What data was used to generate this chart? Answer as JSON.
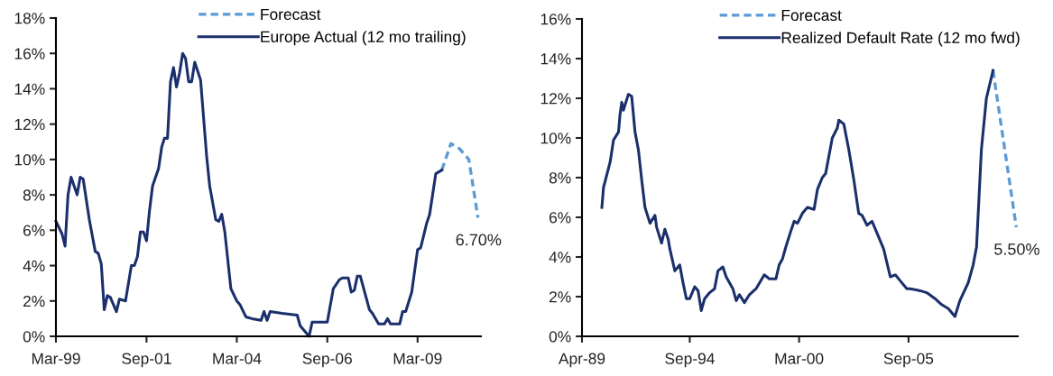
{
  "chart_data": [
    {
      "type": "line",
      "legend": "top right",
      "grid": false,
      "xlim": [
        "1999-03",
        "2010-12"
      ],
      "ylim": [
        0,
        18
      ],
      "xticks": [
        {
          "value": "1999-03",
          "label": "Mar-99"
        },
        {
          "value": "2001-09",
          "label": "Sep-01"
        },
        {
          "value": "2004-03",
          "label": "Mar-04"
        },
        {
          "value": "2006-09",
          "label": "Sep-06"
        },
        {
          "value": "2009-03",
          "label": "Mar-09"
        }
      ],
      "yticks": [
        {
          "value": 0,
          "label": "0%"
        },
        {
          "value": 2,
          "label": "2%"
        },
        {
          "value": 4,
          "label": "4%"
        },
        {
          "value": 6,
          "label": "6%"
        },
        {
          "value": 8,
          "label": "8%"
        },
        {
          "value": 10,
          "label": "10%"
        },
        {
          "value": 12,
          "label": "12%"
        },
        {
          "value": 14,
          "label": "14%"
        },
        {
          "value": 16,
          "label": "16%"
        },
        {
          "value": 18,
          "label": "18%"
        }
      ],
      "series": [
        {
          "name": "Forecast",
          "color": "#5b9bd5",
          "line_style": "dashed",
          "x": [
            "2009-11",
            "2010-02",
            "2010-05",
            "2010-08",
            "2010-11"
          ],
          "values": [
            9.4,
            10.9,
            10.6,
            10.0,
            6.7
          ]
        },
        {
          "name": "Europe Actual (12 mo trailing)",
          "color": "#1a2f6b",
          "line_style": "solid",
          "x": [
            "1999-03",
            "1999-05",
            "1999-06",
            "1999-07",
            "1999-08",
            "1999-10",
            "1999-11",
            "1999-12",
            "2000-02",
            "2000-04",
            "2000-05",
            "2000-06",
            "2000-07",
            "2000-08",
            "2000-09",
            "2000-11",
            "2000-12",
            "2001-02",
            "2001-04",
            "2001-05",
            "2001-06",
            "2001-07",
            "2001-08",
            "2001-09",
            "2001-10",
            "2001-11",
            "2002-01",
            "2002-02",
            "2002-03",
            "2002-04",
            "2002-05",
            "2002-06",
            "2002-07",
            "2002-08",
            "2002-09",
            "2002-10",
            "2002-11",
            "2002-12",
            "2003-01",
            "2003-03",
            "2003-05",
            "2003-06",
            "2003-08",
            "2003-09",
            "2003-10",
            "2003-11",
            "2004-01",
            "2004-03",
            "2004-04",
            "2004-06",
            "2004-08",
            "2004-11",
            "2004-12",
            "2005-01",
            "2005-02",
            "2005-06",
            "2005-11",
            "2005-12",
            "2006-03",
            "2006-04",
            "2006-09",
            "2006-11",
            "2007-01",
            "2007-02",
            "2007-04",
            "2007-05",
            "2007-06",
            "2007-07",
            "2007-08",
            "2007-11",
            "2007-12",
            "2008-02",
            "2008-04",
            "2008-05",
            "2008-06",
            "2008-09",
            "2008-10",
            "2008-11",
            "2009-01",
            "2009-03",
            "2009-04",
            "2009-06",
            "2009-07",
            "2009-09",
            "2009-11"
          ],
          "values": [
            6.5,
            5.8,
            5.1,
            8.0,
            9.0,
            8.0,
            9.0,
            8.9,
            6.6,
            4.8,
            4.7,
            4.1,
            1.5,
            2.3,
            2.2,
            1.4,
            2.1,
            2.0,
            4.0,
            4.0,
            4.5,
            5.9,
            5.9,
            5.4,
            7.1,
            8.5,
            9.5,
            10.7,
            11.2,
            11.2,
            14.4,
            15.2,
            14.1,
            14.9,
            16.0,
            15.7,
            14.4,
            14.4,
            15.5,
            14.5,
            10.2,
            8.5,
            6.6,
            6.5,
            6.9,
            5.9,
            2.7,
            2.0,
            1.8,
            1.1,
            1.0,
            0.9,
            1.4,
            0.9,
            1.4,
            1.3,
            1.2,
            0.6,
            0.0,
            0.8,
            0.8,
            2.7,
            3.2,
            3.3,
            3.3,
            2.5,
            2.6,
            3.4,
            3.4,
            1.5,
            1.3,
            0.7,
            0.7,
            1.0,
            0.7,
            0.7,
            1.4,
            1.4,
            2.5,
            4.9,
            5.0,
            6.4,
            6.9,
            9.2,
            9.4
          ]
        }
      ],
      "annotations": [
        {
          "text": "6.70%",
          "x": "2010-11",
          "y": 6.7
        }
      ]
    },
    {
      "type": "line",
      "legend": "top right",
      "grid": false,
      "xlim": [
        "1989-04",
        "2011-03"
      ],
      "ylim": [
        0,
        16
      ],
      "xticks": [
        {
          "value": "1989-04",
          "label": "Apr-89"
        },
        {
          "value": "1994-09",
          "label": "Sep-94"
        },
        {
          "value": "2000-03",
          "label": "Mar-00"
        },
        {
          "value": "2005-09",
          "label": "Sep-05"
        }
      ],
      "yticks": [
        {
          "value": 0,
          "label": "0%"
        },
        {
          "value": 2,
          "label": "2%"
        },
        {
          "value": 4,
          "label": "4%"
        },
        {
          "value": 6,
          "label": "6%"
        },
        {
          "value": 8,
          "label": "8%"
        },
        {
          "value": 10,
          "label": "10%"
        },
        {
          "value": 12,
          "label": "12%"
        },
        {
          "value": 14,
          "label": "14%"
        },
        {
          "value": 16,
          "label": "16%"
        }
      ],
      "series": [
        {
          "name": "Forecast",
          "color": "#5b9bd5",
          "line_style": "dashed",
          "x": [
            "2009-12",
            "2011-02"
          ],
          "values": [
            13.4,
            5.5
          ]
        },
        {
          "name": "Realized Default Rate (12 mo fwd)",
          "color": "#1a2f6b",
          "line_style": "solid",
          "x": [
            "1990-04",
            "1990-05",
            "1990-09",
            "1990-11",
            "1991-02",
            "1991-03",
            "1991-04",
            "1991-05",
            "1991-08",
            "1991-10",
            "1991-12",
            "1992-02",
            "1992-04",
            "1992-06",
            "1992-09",
            "1992-12",
            "1993-01",
            "1993-04",
            "1993-06",
            "1993-08",
            "1993-09",
            "1993-12",
            "1994-03",
            "1994-05",
            "1994-07",
            "1994-09",
            "1994-12",
            "1995-02",
            "1995-04",
            "1995-06",
            "1995-09",
            "1995-12",
            "1996-02",
            "1996-05",
            "1996-07",
            "1996-11",
            "1997-01",
            "1997-03",
            "1997-06",
            "1997-09",
            "1998-01",
            "1998-06",
            "1998-09",
            "1999-01",
            "1999-03",
            "1999-05",
            "1999-07",
            "1999-10",
            "1999-12",
            "2000-02",
            "2000-05",
            "2000-08",
            "2000-12",
            "2001-02",
            "2001-05",
            "2001-07",
            "2001-11",
            "2002-02",
            "2002-03",
            "2002-06",
            "2002-09",
            "2002-12",
            "2003-03",
            "2003-05",
            "2003-08",
            "2003-11",
            "2004-02",
            "2004-06",
            "2004-10",
            "2005-01",
            "2005-04",
            "2005-08",
            "2005-10",
            "2006-04",
            "2006-08",
            "2007-01",
            "2007-05",
            "2007-09",
            "2008-01",
            "2008-04",
            "2008-09",
            "2008-12",
            "2009-02",
            "2009-05",
            "2009-08",
            "2009-12"
          ],
          "values": [
            6.5,
            7.5,
            8.8,
            9.9,
            10.3,
            11.2,
            11.8,
            11.4,
            12.2,
            12.1,
            10.3,
            9.4,
            7.9,
            6.5,
            5.7,
            6.1,
            5.5,
            4.7,
            5.4,
            4.9,
            4.4,
            3.3,
            3.6,
            2.7,
            1.9,
            1.9,
            2.5,
            2.3,
            1.3,
            1.9,
            2.2,
            2.4,
            3.3,
            3.5,
            3.0,
            2.4,
            1.8,
            2.1,
            1.7,
            2.1,
            2.4,
            3.1,
            2.9,
            2.9,
            3.6,
            3.9,
            4.5,
            5.3,
            5.8,
            5.7,
            6.2,
            6.5,
            6.4,
            7.4,
            8.0,
            8.2,
            10.0,
            10.5,
            10.9,
            10.7,
            9.4,
            7.9,
            6.2,
            6.1,
            5.6,
            5.8,
            5.2,
            4.4,
            3.0,
            3.1,
            2.8,
            2.4,
            2.4,
            2.3,
            2.2,
            1.9,
            1.6,
            1.4,
            1.0,
            1.8,
            2.7,
            3.6,
            4.5,
            9.4,
            12.0,
            13.4
          ]
        }
      ],
      "annotations": [
        {
          "text": "5.50%",
          "x": "2011-02",
          "y": 5.5
        }
      ]
    }
  ]
}
